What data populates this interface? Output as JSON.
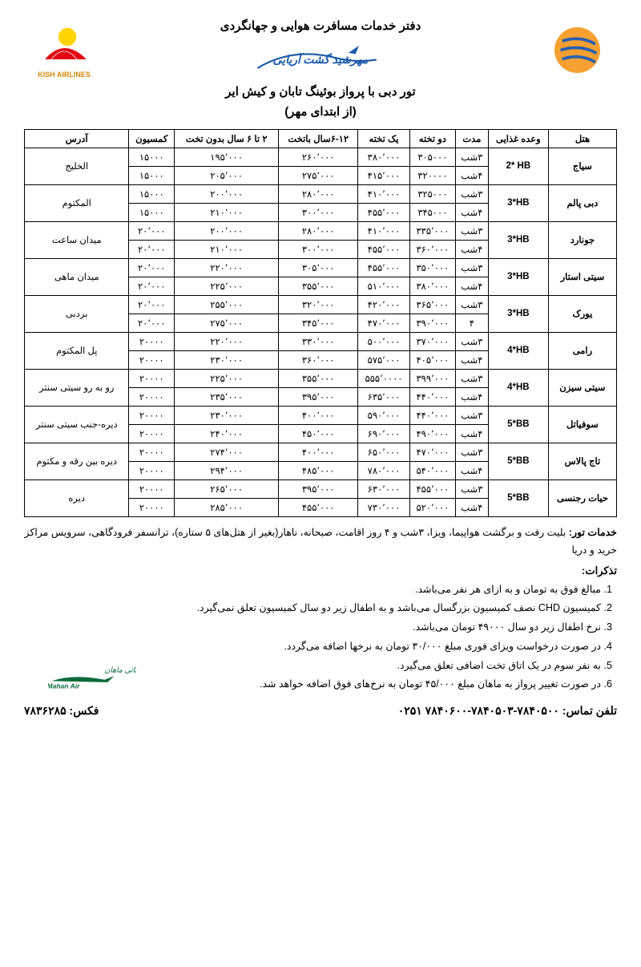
{
  "header": {
    "title1": "دفتر خدمات مسافرت هوایی و جهانگردی",
    "title2": "تور دبی با پرواز بوئینگ تابان و کیش ایر",
    "title3": "(از ابتدای مهر)",
    "kish_text": "KISH AIRLINES"
  },
  "columns": [
    "هتل",
    "وعده غذایی",
    "مدت",
    "دو تخته",
    "یک تخته",
    "۶-۱۲سال باتخت",
    "۲ تا ۶ سال بدون تخت",
    "کمسیون",
    "آدرس"
  ],
  "hotels": [
    {
      "name": "سیاج",
      "meal": "2* HB",
      "address": "الخلیج",
      "rows": [
        {
          "dur": "۳شب",
          "dbl": "۳۰۵۰۰۰",
          "sgl": "۳۸۰٬۰۰۰",
          "c612": "۲۶۰٬۰۰۰",
          "c26": "۱۹۵٬۰۰۰",
          "com": "۱۵۰۰۰"
        },
        {
          "dur": "۴شب",
          "dbl": "۳۲۰۰۰۰",
          "sgl": "۴۱۵٬۰۰۰",
          "c612": "۲۷۵٬۰۰۰",
          "c26": "۲۰۵٬۰۰۰",
          "com": "۱۵۰۰۰"
        }
      ]
    },
    {
      "name": "دبی پالم",
      "meal": "3*HB",
      "address": "المکتوم",
      "rows": [
        {
          "dur": "۳شب",
          "dbl": "۳۲۵۰۰۰",
          "sgl": "۴۱۰٬۰۰۰",
          "c612": "۲۸۰٬۰۰۰",
          "c26": "۲۰۰٬۰۰۰",
          "com": "۱۵۰۰۰"
        },
        {
          "dur": "۴شب",
          "dbl": "۳۴۵۰۰۰",
          "sgl": "۴۵۵٬۰۰۰",
          "c612": "۳۰۰٬۰۰۰",
          "c26": "۲۱۰٬۰۰۰",
          "com": "۱۵۰۰۰"
        }
      ]
    },
    {
      "name": "جونارد",
      "meal": "3*HB",
      "address": "میدان ساعت",
      "rows": [
        {
          "dur": "۳شب",
          "dbl": "۳۳۵٬۰۰۰",
          "sgl": "۴۱۰٬۰۰۰",
          "c612": "۲۸۰٬۰۰۰",
          "c26": "۲۰۰٬۰۰۰",
          "com": "۲۰٬۰۰۰"
        },
        {
          "dur": "۴شب",
          "dbl": "۳۶۰٬۰۰۰",
          "sgl": "۴۵۵٬۰۰۰",
          "c612": "۳۰۰٬۰۰۰",
          "c26": "۲۱۰٬۰۰۰",
          "com": "۲۰٬۰۰۰"
        }
      ]
    },
    {
      "name": "سیتی استار",
      "meal": "3*HB",
      "address": "میدان ماهی",
      "rows": [
        {
          "dur": "۳شب",
          "dbl": "۳۵۰٬۰۰۰",
          "sgl": "۴۵۵٬۰۰۰",
          "c612": "۳۰۵٬۰۰۰",
          "c26": "۲۲۰٬۰۰۰",
          "com": "۲۰٬۰۰۰"
        },
        {
          "dur": "۴شب",
          "dbl": "۳۸۰٬۰۰۰",
          "sgl": "۵۱۰٬۰۰۰",
          "c612": "۳۵۵٬۰۰۰",
          "c26": "۲۲۵٬۰۰۰",
          "com": "۲۰٬۰۰۰"
        }
      ]
    },
    {
      "name": "یورک",
      "meal": "3*HB",
      "address": "بردبی",
      "rows": [
        {
          "dur": "۳شب",
          "dbl": "۳۶۵٬۰۰۰",
          "sgl": "۴۲۰٬۰۰۰",
          "c612": "۳۲۰٬۰۰۰",
          "c26": "۲۵۵٬۰۰۰",
          "com": "۲۰٬۰۰۰"
        },
        {
          "dur": "۴",
          "dbl": "۳۹۰٬۰۰۰",
          "sgl": "۴۷۰٬۰۰۰",
          "c612": "۳۴۵٬۰۰۰",
          "c26": "۲۷۵٬۰۰۰",
          "com": "۲۰٬۰۰۰"
        }
      ]
    },
    {
      "name": "رامی",
      "meal": "4*HB",
      "address": "پل المکتوم",
      "rows": [
        {
          "dur": "۳شب",
          "dbl": "۳۷۰٬۰۰۰",
          "sgl": "۵۰۰٬۰۰۰",
          "c612": "۳۳۰٬۰۰۰",
          "c26": "۲۲۰٬۰۰۰",
          "com": "۲۰۰۰۰"
        },
        {
          "dur": "۴شب",
          "dbl": "۴۰۵٬۰۰۰",
          "sgl": "۵۷۵٬۰۰۰",
          "c612": "۳۶۰٬۰۰۰",
          "c26": "۲۳۰٬۰۰۰",
          "com": "۲۰۰۰۰"
        }
      ]
    },
    {
      "name": "سیتی سیزن",
      "meal": "4*HB",
      "address": "رو به رو سیتی سنتر",
      "rows": [
        {
          "dur": "۳شب",
          "dbl": "۳۹۹٬۰۰۰",
          "sgl": "۵۵۵٬۰۰۰۰",
          "c612": "۳۵۵٬۰۰۰",
          "c26": "۲۲۵٬۰۰۰",
          "com": "۲۰۰۰۰"
        },
        {
          "dur": "۴شب",
          "dbl": "۴۴۰٬۰۰۰",
          "sgl": "۶۳۵٬۰۰۰",
          "c612": "۳۹۵٬۰۰۰",
          "c26": "۲۳۵٬۰۰۰",
          "com": "۲۰۰۰۰"
        }
      ]
    },
    {
      "name": "سوفیاتل",
      "meal": "5*BB",
      "address": "دیره-جنب سیتی سنتر",
      "rows": [
        {
          "dur": "۳شب",
          "dbl": "۴۴۰٬۰۰۰",
          "sgl": "۵۹۰٬۰۰۰",
          "c612": "۴۰۰٬۰۰۰",
          "c26": "۲۳۰٬۰۰۰",
          "com": "۲۰۰۰۰"
        },
        {
          "dur": "۴شب",
          "dbl": "۴۹۰٬۰۰۰",
          "sgl": "۶۹۰٬۰۰۰",
          "c612": "۴۵۰٬۰۰۰",
          "c26": "۲۴۰٬۰۰۰",
          "com": "۲۰۰۰۰"
        }
      ]
    },
    {
      "name": "تاج پالاس",
      "meal": "5*BB",
      "address": "دیره بین رقه و مکتوم",
      "rows": [
        {
          "dur": "۳شب",
          "dbl": "۴۷۰٬۰۰۰",
          "sgl": "۶۵۰٬۰۰۰",
          "c612": "۴۰۰٬۰۰۰",
          "c26": "۲۷۴٬۰۰۰",
          "com": "۲۰۰۰۰"
        },
        {
          "dur": "۴شب",
          "dbl": "۵۴۰٬۰۰۰",
          "sgl": "۷۸۰٬۰۰۰",
          "c612": "۴۸۵٬۰۰۰",
          "c26": "۲۹۴٬۰۰۰",
          "com": "۲۰۰۰۰"
        }
      ]
    },
    {
      "name": "حیات رجنسی",
      "meal": "5*BB",
      "address": "دیره",
      "rows": [
        {
          "dur": "۳شب",
          "dbl": "۴۵۵٬۰۰۰",
          "sgl": "۶۳۰٬۰۰۰",
          "c612": "۳۹۵٬۰۰۰",
          "c26": "۲۶۵٬۰۰۰",
          "com": "۲۰۰۰۰"
        },
        {
          "dur": "۴شب",
          "dbl": "۵۲۰٬۰۰۰",
          "sgl": "۷۳۰٬۰۰۰",
          "c612": "۴۵۵٬۰۰۰",
          "c26": "۲۸۵٬۰۰۰",
          "com": "۲۰۰۰۰"
        }
      ]
    }
  ],
  "services": {
    "title": "خدمات تور:",
    "text": "بلیت رفت و برگشت هواپیما، ویزا، ۳شب و ۴ روز اقامت، صبحانه، ناهار(بغیر از هتل‌های ۵ ستاره)، ترانسفر فرودگاهی، سرویس مراکز خرید و دریا"
  },
  "notes": {
    "title": "تذکرات:",
    "items": [
      "مبالغ فوق به تومان و به ازای هر نفر می‌باشد.",
      "کمیسیون CHD نصف کمیسیون بزرگسال می‌باشد و به اطفال زیر دو سال کمیسیون تعلق نمی‌گیرد.",
      "نرخ اطفال زیر دو سال ۴۹۰۰۰ تومان می‌باشد.",
      "در صورت درخواست ویزای فوری مبلغ ۳۰/۰۰۰ تومان به نرخها اضافه می‌گردد.",
      "به نفر سوم در یک اتاق تخت اضافی تعلق می‌گیرد.",
      "در صورت تغییر پرواز به ماهان مبلغ ۴۵/۰۰۰ تومان به نرخ‌های فوق اضافه خواهد شد."
    ]
  },
  "footer": {
    "phone_label": "تلفن تماس:",
    "phone": "۷۸۴۰۵۰۰-۷۸۴۰۵۰۳-۷۸۴۰۶۰۰ ۰۲۵۱",
    "fax_label": "فکس:",
    "fax": "۷۸۳۶۲۸۵"
  }
}
